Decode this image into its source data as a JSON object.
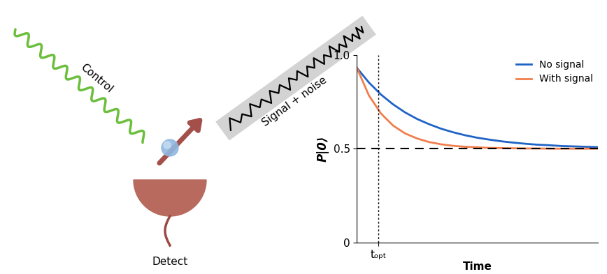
{
  "diagram": {
    "control_label": "Control",
    "signal_label": "Signal + noise",
    "detector_label": "Detect"
  },
  "chart_data": {
    "type": "line",
    "x_label": "Time",
    "y_label": "P|0⟩",
    "x": [
      0,
      0.5,
      1,
      1.5,
      2,
      2.5,
      3,
      3.5,
      4,
      4.5,
      5,
      5.5,
      6,
      6.5,
      7,
      7.5,
      8,
      8.5,
      9,
      9.5,
      10
    ],
    "series": [
      {
        "name": "No signal",
        "color": "#1f63c6",
        "values": [
          0.93,
          0.852,
          0.788,
          0.736,
          0.693,
          0.658,
          0.63,
          0.606,
          0.587,
          0.571,
          0.558,
          0.548,
          0.539,
          0.532,
          0.526,
          0.521,
          0.518,
          0.514,
          0.512,
          0.51,
          0.508
        ]
      },
      {
        "name": "With signal",
        "color": "#f07f4d",
        "values": [
          0.93,
          0.783,
          0.687,
          0.623,
          0.581,
          0.554,
          0.535,
          0.523,
          0.515,
          0.51,
          0.507,
          0.504,
          0.503,
          0.502,
          0.501,
          0.501,
          0.5,
          0.5,
          0.5,
          0.5,
          0.5
        ]
      }
    ],
    "xlim": [
      0,
      10
    ],
    "ylim": [
      0,
      1
    ],
    "xticks": [
      {
        "value": 0.9,
        "label": "tₒₚₜ"
      }
    ],
    "yticks": [
      0,
      0.5,
      {
        "value": 1,
        "label": "1.0"
      }
    ],
    "hlines": [
      0.5
    ],
    "vlines": [
      0.9
    ],
    "legend": "upper right"
  }
}
